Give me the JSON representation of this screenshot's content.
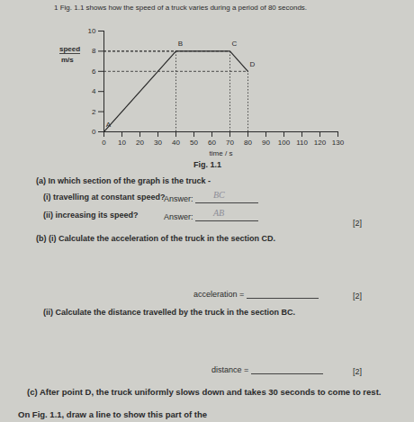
{
  "header": {
    "text": "1 Fig. 1.1 shows how the speed of a truck varies during a period of 80 seconds."
  },
  "chart_data": {
    "type": "line",
    "caption": "Fig. 1.1",
    "x": [
      0,
      40,
      70,
      80
    ],
    "values": [
      0,
      8,
      8,
      6
    ],
    "point_labels": [
      "A",
      "B",
      "C",
      "D"
    ],
    "color": "#2a2a2a",
    "x_label": "time / s",
    "y_label": [
      "speed",
      "m/s"
    ],
    "xlim": [
      0,
      130
    ],
    "xticks": [
      0,
      10,
      20,
      30,
      40,
      50,
      60,
      70,
      80,
      90,
      100,
      110,
      120,
      130
    ],
    "ylim": [
      0,
      10
    ],
    "yticks": [
      0,
      2,
      4,
      6,
      8,
      10
    ]
  },
  "questions": [
    {
      "text": "(a) In which section of the graph is the truck -"
    },
    {
      "text": "(i) travelling at constant speed?",
      "answer_prompt": "Answer:",
      "handwritten": "BC"
    },
    {
      "text": "(ii) increasing its speed?",
      "answer_prompt": "Answer:",
      "handwritten": "AB",
      "marks": "[2]"
    },
    {
      "text": "(b) (i) Calculate the acceleration of the truck in the section CD.",
      "answer_prompt": "acceleration =",
      "marks": "[2]"
    },
    {
      "text": "(ii) Calculate the distance travelled by the truck in the section BC.",
      "answer_prompt": "distance =",
      "marks": "[2]"
    },
    {
      "text": "(c) After point D, the truck uniformly slows down and takes 30 seconds to come to rest."
    },
    {
      "text": "On Fig. 1.1, draw a line to show this part of the"
    }
  ]
}
